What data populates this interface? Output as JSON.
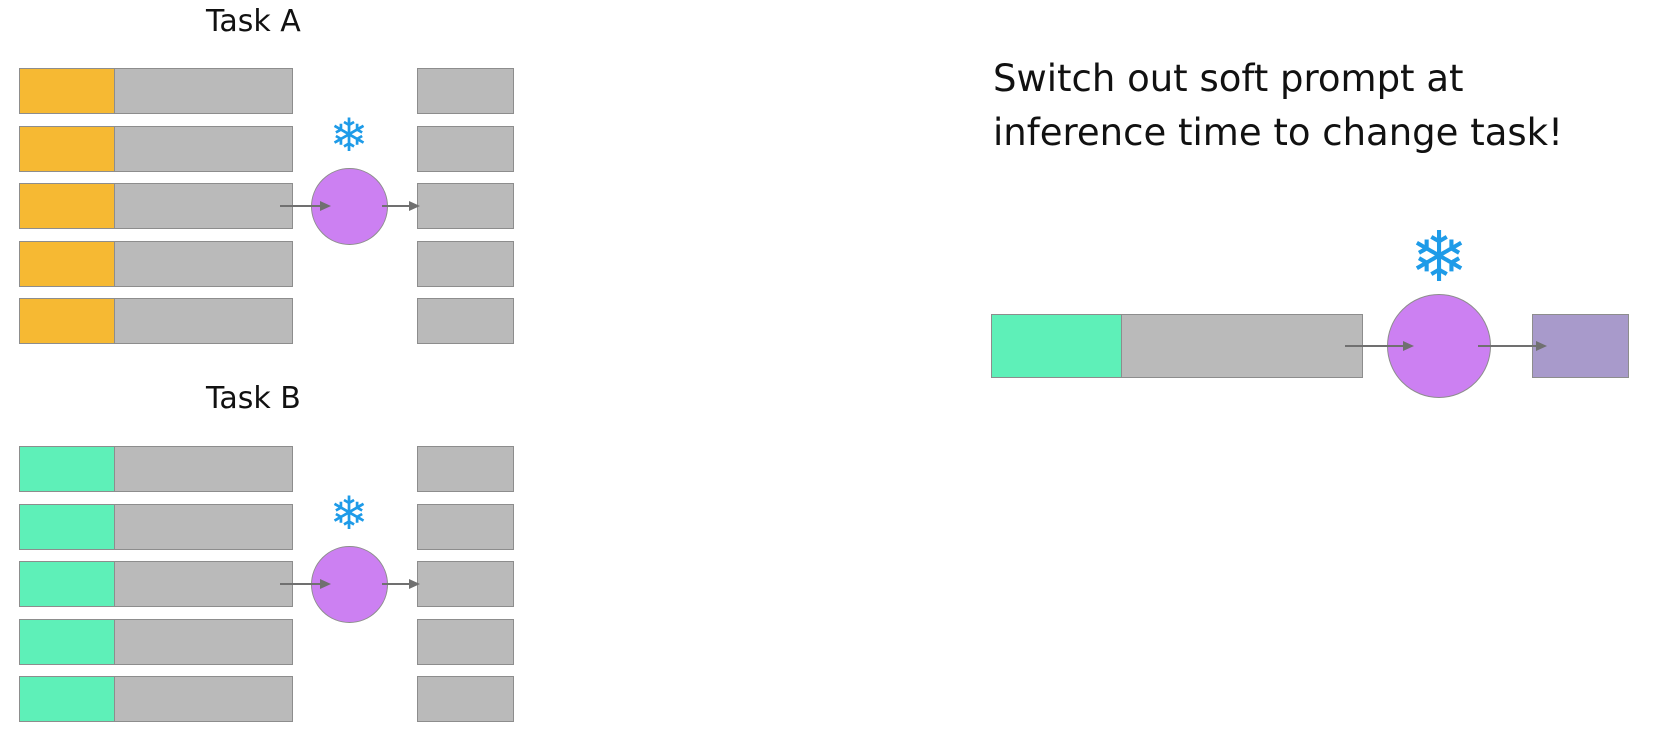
{
  "colors": {
    "task_a_prompt": "#F6B933",
    "task_b_prompt": "#5EF0B8",
    "input_token": "#BABABA",
    "output_token": "#BABABA",
    "model": "#CC80F2",
    "model_output": "#A89ACB",
    "frozen_icon": "#1E9BE8",
    "arrow": "#707070",
    "border": "#8D8D8D"
  },
  "task_a": {
    "title": "Task A",
    "prompt_color": "#F6B933",
    "rows": 5,
    "frozen_icon": "snowflake-icon"
  },
  "task_b": {
    "title": "Task B",
    "prompt_color": "#5EF0B8",
    "rows": 5,
    "frozen_icon": "snowflake-icon"
  },
  "inference": {
    "caption": "Switch out soft prompt at inference time to change task!",
    "prompt_color": "#5EF0B8",
    "frozen_icon": "snowflake-icon"
  },
  "icons": {
    "frozen": "❄"
  }
}
